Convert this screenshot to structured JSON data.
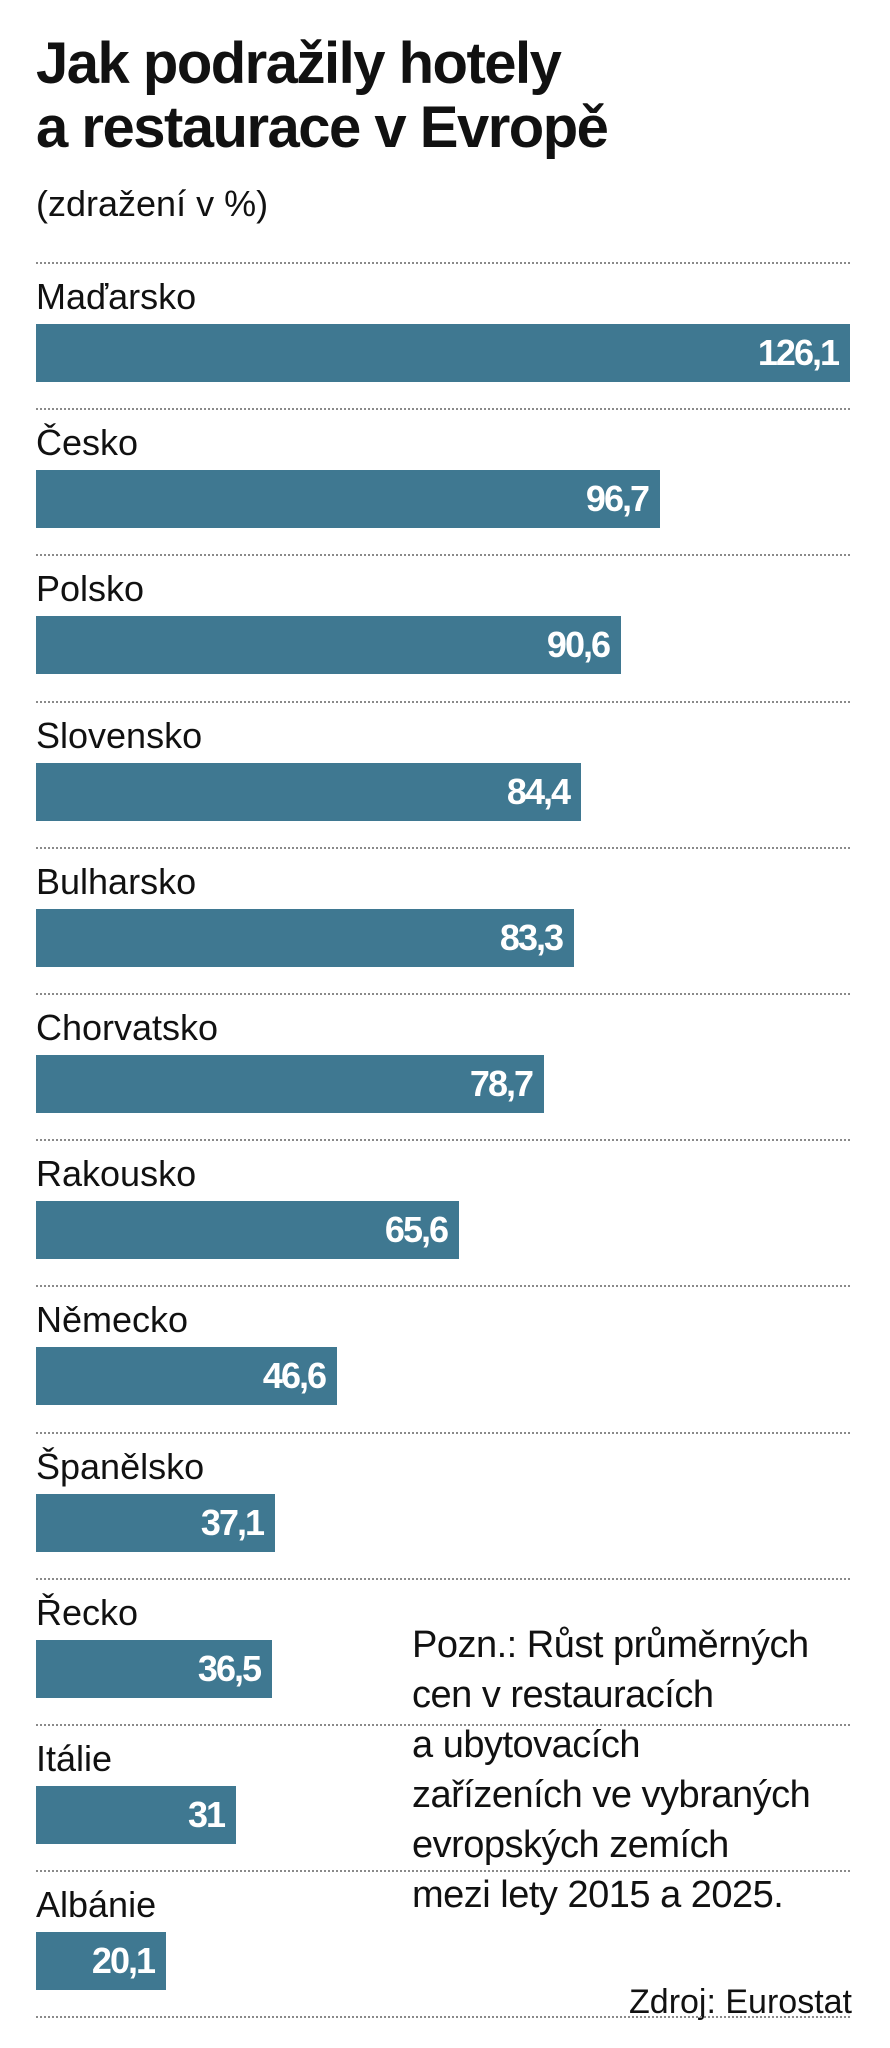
{
  "chart_data": {
    "type": "bar",
    "orientation": "horizontal",
    "title": "Jak podražily hotely a restaurace v Evropě",
    "title_lines": [
      "Jak podražily hotely",
      "a restaurace v Evropě"
    ],
    "subtitle": "(zdražení v %)",
    "categories": [
      "Maďarsko",
      "Česko",
      "Polsko",
      "Slovensko",
      "Bulharsko",
      "Chorvatsko",
      "Rakousko",
      "Německo",
      "Španělsko",
      "Řecko",
      "Itálie",
      "Albánie"
    ],
    "values": [
      126.1,
      96.7,
      90.6,
      84.4,
      83.3,
      78.7,
      65.6,
      46.6,
      37.1,
      36.5,
      31,
      20.1
    ],
    "value_labels": [
      "126,1",
      "96,7",
      "90,6",
      "84,4",
      "83,3",
      "78,7",
      "65,6",
      "46,6",
      "37,1",
      "36,5",
      "31",
      "20,1"
    ],
    "xlim": [
      0,
      126.1
    ],
    "grid": false,
    "legend": "none",
    "bar_color": "#3f7891",
    "divider_color": "#8a8a8a",
    "note_lines": [
      "Pozn.: Růst průměrných",
      "cen v restauracích",
      "a ubytovacích",
      "zařízeních ve vybraných",
      "evropských zemích",
      "mezi lety 2015 a 2025."
    ],
    "source": "Zdroj: Eurostat"
  }
}
